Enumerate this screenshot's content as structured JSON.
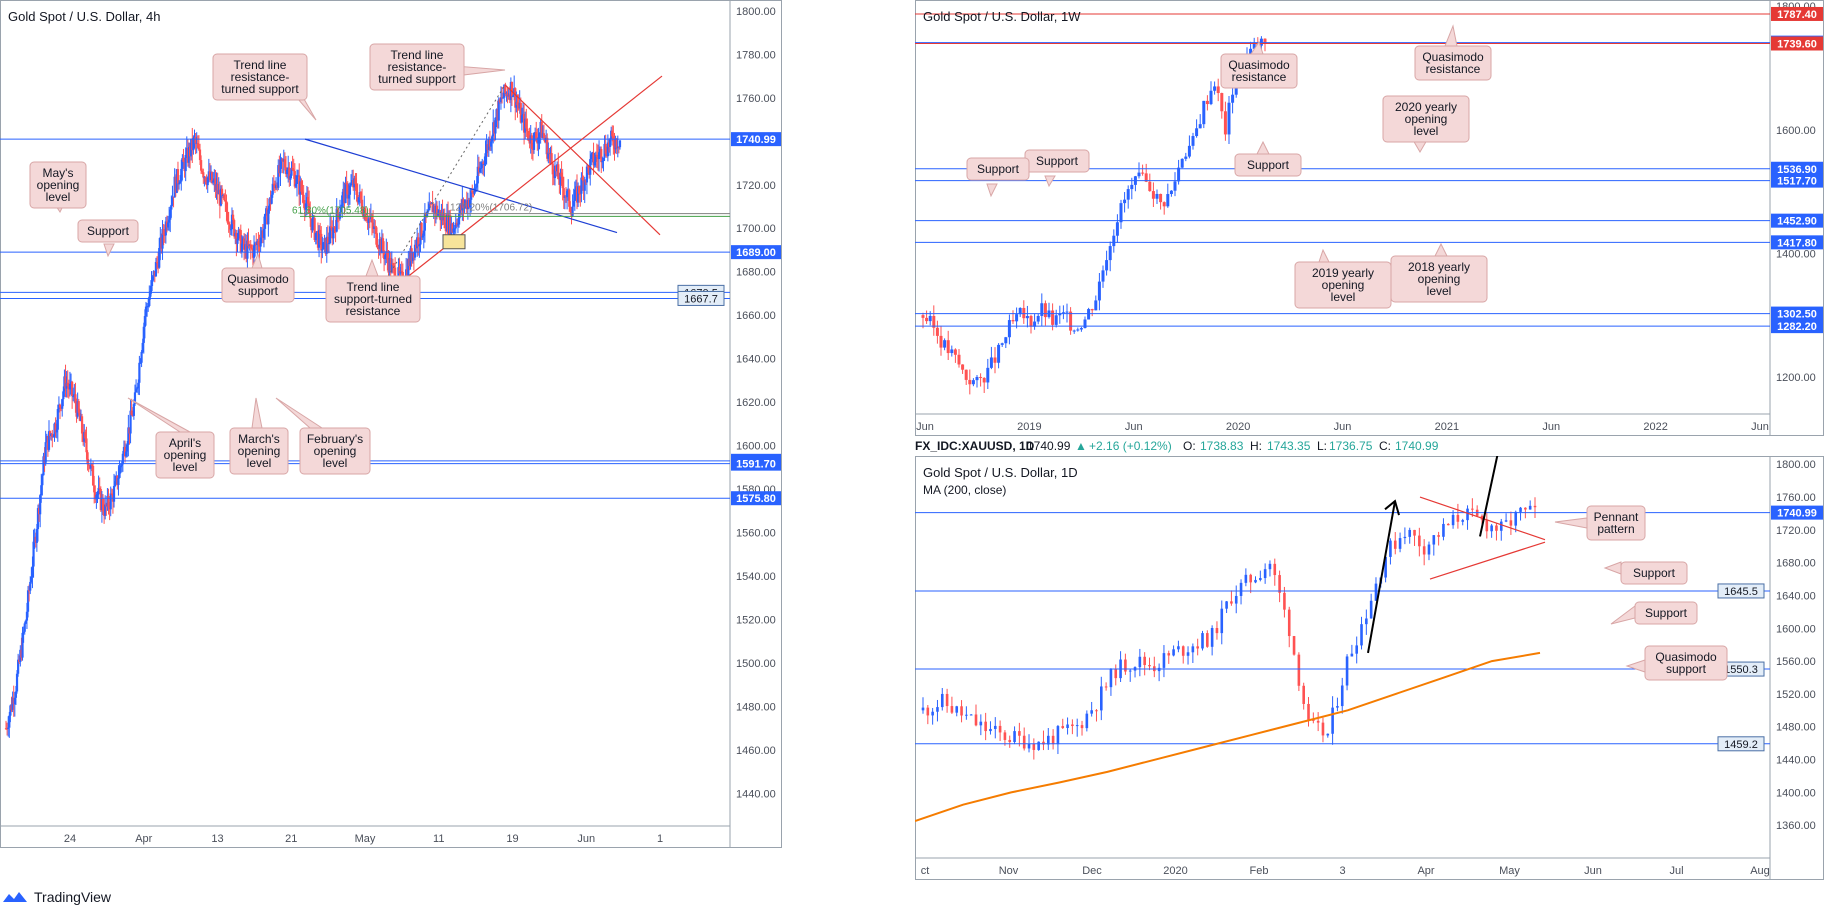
{
  "brand": {
    "name": "TradingView",
    "icon": "tradingview-logo-icon"
  },
  "colors": {
    "bull": "#2962ff",
    "bear": "#e53935",
    "candle_bear": "#ff5252",
    "hline": "#2962ff",
    "resistance_line": "#e53935",
    "callout_bg": "#f4d8d8",
    "callout_border": "#d8a6a6",
    "ma_orange": "#f57c00",
    "fib_green": "#43a047",
    "trend_blue": "#1e3fd4"
  },
  "chart_data": [
    {
      "id": "h4",
      "type": "candlestick",
      "title": "Gold Spot / U.S. Dollar, 4h",
      "ylim": [
        1425,
        1805
      ],
      "y_ticks": [
        1800,
        1780,
        1760,
        1740,
        1720,
        1700,
        1680,
        1660,
        1640,
        1620,
        1600,
        1580,
        1560,
        1540,
        1520,
        1500,
        1480,
        1460,
        1440
      ],
      "x_ticks": [
        "24",
        "Apr",
        "13",
        "21",
        "May",
        "11",
        "19",
        "Jun",
        "1"
      ],
      "path": [
        1470,
        1490,
        1520,
        1560,
        1600,
        1610,
        1630,
        1620,
        1600,
        1580,
        1570,
        1580,
        1600,
        1620,
        1660,
        1680,
        1700,
        1720,
        1730,
        1740,
        1725,
        1720,
        1710,
        1700,
        1690,
        1690,
        1700,
        1720,
        1730,
        1725,
        1715,
        1700,
        1690,
        1700,
        1715,
        1720,
        1710,
        1700,
        1690,
        1680,
        1675,
        1690,
        1700,
        1710,
        1705,
        1700,
        1710,
        1715,
        1730,
        1745,
        1760,
        1765,
        1750,
        1740,
        1745,
        1730,
        1720,
        1710,
        1720,
        1730,
        1735,
        1740,
        1741
      ],
      "levels": [
        {
          "price": 1740.99,
          "label": "1740.99",
          "style": "badge-blue"
        },
        {
          "price": 1689.0,
          "label": "1689.00",
          "style": "badge-blue"
        },
        {
          "price": 1670.5,
          "label": "1670.5",
          "style": "badge-light"
        },
        {
          "price": 1667.7,
          "label": "1667.7",
          "style": "badge-light"
        },
        {
          "price": 1593.0,
          "label": "1593.00",
          "style": "badge-blue"
        },
        {
          "price": 1591.7,
          "label": "1591.70",
          "style": "badge-blue"
        },
        {
          "price": 1575.8,
          "label": "1575.80",
          "style": "badge-blue"
        }
      ],
      "fib_labels": [
        "61.80%(1705.48)",
        "127.20%(1706.72)"
      ],
      "annotations": [
        {
          "text": [
            "Trend line",
            "resistance-",
            "turned support"
          ]
        },
        {
          "text": [
            "Trend line",
            "resistance-",
            "turned support"
          ]
        },
        {
          "text": [
            "May's",
            "opening",
            "level"
          ]
        },
        {
          "text": [
            "Support"
          ]
        },
        {
          "text": [
            "Quasimodo",
            "support"
          ]
        },
        {
          "text": [
            "Trend line",
            "support-turned",
            "resistance"
          ]
        },
        {
          "text": [
            "April's",
            "opening",
            "level"
          ]
        },
        {
          "text": [
            "March's",
            "opening",
            "level"
          ]
        },
        {
          "text": [
            "February's",
            "opening",
            "level"
          ]
        }
      ]
    },
    {
      "id": "w1",
      "type": "candlestick",
      "title": "Gold Spot / U.S. Dollar, 1W",
      "ylim": [
        1140,
        1810
      ],
      "y_ticks": [
        1800,
        1600,
        1400,
        1200
      ],
      "x_ticks": [
        "Jun",
        "2019",
        "Jun",
        "2020",
        "Jun",
        "2021",
        "Jun",
        "2022",
        "Jun"
      ],
      "path": [
        1300,
        1280,
        1250,
        1230,
        1200,
        1190,
        1210,
        1240,
        1280,
        1300,
        1290,
        1310,
        1290,
        1300,
        1280,
        1295,
        1330,
        1400,
        1460,
        1500,
        1520,
        1510,
        1480,
        1500,
        1560,
        1580,
        1640,
        1680,
        1600,
        1700,
        1720,
        1740,
        1741
      ],
      "levels": [
        {
          "price": 1787.4,
          "label": "1787.40",
          "style": "badge-red"
        },
        {
          "price": 1741.02,
          "label": "1741.02",
          "style": "badge-blue"
        },
        {
          "price": 1739.6,
          "label": "1739.60",
          "style": "badge-red"
        },
        {
          "price": 1536.9,
          "label": "1536.90",
          "style": "badge-blue"
        },
        {
          "price": 1517.7,
          "label": "1517.70",
          "style": "badge-blue"
        },
        {
          "price": 1452.9,
          "label": "1452.90",
          "style": "badge-blue"
        },
        {
          "price": 1417.8,
          "label": "1417.80",
          "style": "badge-blue"
        },
        {
          "price": 1302.5,
          "label": "1302.50",
          "style": "badge-blue"
        },
        {
          "price": 1282.2,
          "label": "1282.20",
          "style": "badge-blue"
        }
      ],
      "annotations": [
        {
          "text": [
            "Quasimodo",
            "resistance"
          ]
        },
        {
          "text": [
            "Quasimodo",
            "resistance"
          ]
        },
        {
          "text": [
            "2020 yearly",
            "opening",
            "level"
          ]
        },
        {
          "text": [
            "Support"
          ]
        },
        {
          "text": [
            "Support"
          ]
        },
        {
          "text": [
            "Support"
          ]
        },
        {
          "text": [
            "2019 yearly",
            "opening",
            "level"
          ]
        },
        {
          "text": [
            "2018 yearly",
            "opening",
            "level"
          ]
        }
      ]
    },
    {
      "id": "d1",
      "type": "candlestick",
      "title": "Gold Spot / U.S. Dollar, 1D",
      "ylim": [
        1320,
        1810
      ],
      "y_ticks": [
        1800,
        1760,
        1720,
        1680,
        1640,
        1600,
        1560,
        1520,
        1480,
        1440,
        1400,
        1360
      ],
      "x_ticks": [
        "ct",
        "Nov",
        "Dec",
        "2020",
        "Feb",
        "3",
        "Apr",
        "May",
        "Jun",
        "Jul",
        "Aug"
      ],
      "ma_label": "MA (200, close)",
      "ma": [
        1365,
        1385,
        1400,
        1412,
        1425,
        1440,
        1455,
        1470,
        1485,
        1500,
        1520,
        1540,
        1560,
        1570
      ],
      "path": [
        1500,
        1510,
        1495,
        1480,
        1470,
        1465,
        1460,
        1470,
        1480,
        1510,
        1550,
        1560,
        1555,
        1570,
        1580,
        1590,
        1640,
        1660,
        1680,
        1600,
        1480,
        1470,
        1560,
        1620,
        1690,
        1720,
        1700,
        1720,
        1740,
        1730,
        1720,
        1740,
        1741
      ],
      "levels": [
        {
          "price": 1740.99,
          "label": "1740.99",
          "style": "badge-blue"
        },
        {
          "price": 1645.5,
          "label": "1645.5",
          "style": "badge-light"
        },
        {
          "price": 1550.3,
          "label": "1550.3",
          "style": "badge-light"
        },
        {
          "price": 1459.2,
          "label": "1459.2",
          "style": "badge-light"
        }
      ],
      "annotations": [
        {
          "text": [
            "Pennant",
            "pattern"
          ]
        },
        {
          "text": [
            "Support"
          ]
        },
        {
          "text": [
            "Support"
          ]
        },
        {
          "text": [
            "Quasimodo",
            "support"
          ]
        }
      ]
    }
  ],
  "d1_header": {
    "symbol": "FX_IDC:XAUUSD, 1D",
    "price": "1740.99",
    "change": "+2.16 (+0.12%)",
    "o_label": "O:",
    "o": "1738.83",
    "h_label": "H:",
    "h": "1743.35",
    "l_label": "L:",
    "l": "1736.75",
    "c_label": "C:",
    "c": "1740.99"
  }
}
